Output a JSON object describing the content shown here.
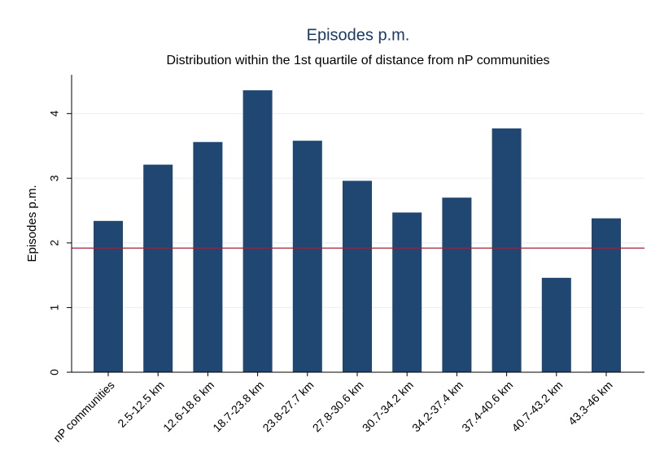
{
  "chart_data": {
    "type": "bar",
    "title": "Episodes p.m.",
    "subtitle": "Distribution within the 1st quartile of distance from nP communities",
    "y_label": "Episodes p.m.",
    "categories": [
      "nP communities",
      "2.5-12.5 km",
      "12.6-18.6 km",
      "18.7-23.8 km",
      "23.8-27.7 km",
      "27.8-30.6 km",
      "30.7-34.2 km",
      "34.2-37.4 km",
      "37.4-40.6 km",
      "40.7-43.2 km",
      "43.3-46 km"
    ],
    "values": [
      2.34,
      3.21,
      3.56,
      4.36,
      3.58,
      2.96,
      2.47,
      2.7,
      3.77,
      1.46,
      2.38
    ],
    "color": "#1f4771",
    "reference_line": {
      "value": 1.92,
      "color": "#a0203a"
    },
    "ylim": [
      0,
      4.6
    ],
    "yticks": [
      0,
      1,
      2,
      3,
      4
    ],
    "grid": true
  }
}
